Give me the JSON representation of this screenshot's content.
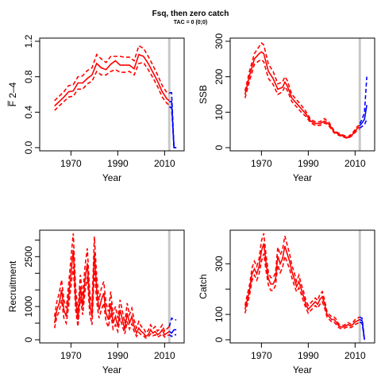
{
  "title": "Fsq, then zero catch",
  "subtitle": "TAC = 0 (0;0)",
  "colors": {
    "historic": "#ff0000",
    "projection": "#0000ff",
    "vline": "#c8c8c8"
  },
  "chart_data": [
    {
      "type": "line",
      "panel": "top-left",
      "ylabel": "F̅ 2–4",
      "xlabel": "Year",
      "xlim": [
        1958,
        2017
      ],
      "ylim": [
        0,
        1.2
      ],
      "x_ticks": [
        1970,
        1990,
        2010
      ],
      "y_ticks": [
        "0.0",
        "0.4",
        "0.8",
        "1.2"
      ],
      "vline_x": 2012,
      "historic": {
        "x": [
          1963,
          1965,
          1967,
          1969,
          1971,
          1973,
          1975,
          1977,
          1979,
          1981,
          1983,
          1985,
          1987,
          1989,
          1991,
          1993,
          1995,
          1997,
          1999,
          2001,
          2003,
          2005,
          2007,
          2009,
          2011,
          2012
        ],
        "median": [
          0.47,
          0.52,
          0.57,
          0.63,
          0.64,
          0.73,
          0.73,
          0.78,
          0.82,
          0.95,
          0.9,
          0.88,
          0.94,
          0.98,
          0.93,
          0.93,
          0.93,
          0.89,
          1.05,
          1.03,
          0.95,
          0.85,
          0.75,
          0.63,
          0.55,
          0.53
        ],
        "lower": [
          0.42,
          0.47,
          0.52,
          0.57,
          0.58,
          0.66,
          0.66,
          0.72,
          0.75,
          0.86,
          0.82,
          0.82,
          0.86,
          0.88,
          0.85,
          0.85,
          0.86,
          0.82,
          0.95,
          0.96,
          0.88,
          0.79,
          0.69,
          0.57,
          0.5,
          0.48
        ],
        "upper": [
          0.53,
          0.58,
          0.63,
          0.7,
          0.71,
          0.8,
          0.81,
          0.87,
          0.9,
          1.05,
          1.0,
          0.96,
          1.03,
          1.03,
          1.03,
          1.02,
          1.02,
          0.98,
          1.15,
          1.12,
          1.03,
          0.93,
          0.82,
          0.7,
          0.62,
          0.61
        ]
      },
      "projection": {
        "x": [
          2012,
          2013,
          2014,
          2015
        ],
        "median": [
          0.52,
          0.52,
          0.0,
          0.0
        ],
        "lower": [
          0.46,
          0.45,
          0.0,
          0.0
        ],
        "upper": [
          0.62,
          0.62,
          0.0,
          0.0
        ]
      }
    },
    {
      "type": "line",
      "panel": "top-right",
      "ylabel": "SSB",
      "xlabel": "Year",
      "xlim": [
        1958,
        2017
      ],
      "ylim": [
        0,
        300
      ],
      "x_ticks": [
        1970,
        1990,
        2010
      ],
      "y_ticks": [
        "0",
        "100",
        "200",
        "300"
      ],
      "vline_x": 2012,
      "historic": {
        "x": [
          1963,
          1965,
          1967,
          1969,
          1970,
          1971,
          1973,
          1975,
          1977,
          1979,
          1980,
          1981,
          1983,
          1985,
          1987,
          1989,
          1991,
          1993,
          1995,
          1997,
          1999,
          2001,
          2003,
          2005,
          2007,
          2009,
          2011,
          2012
        ],
        "median": [
          150,
          205,
          250,
          265,
          270,
          265,
          215,
          195,
          165,
          170,
          185,
          175,
          140,
          125,
          110,
          95,
          75,
          68,
          68,
          75,
          65,
          45,
          38,
          32,
          28,
          38,
          55,
          58
        ],
        "lower": [
          140,
          190,
          235,
          245,
          248,
          242,
          195,
          178,
          150,
          158,
          172,
          162,
          130,
          115,
          100,
          88,
          70,
          63,
          63,
          70,
          60,
          42,
          35,
          30,
          26,
          35,
          50,
          53
        ],
        "upper": [
          160,
          218,
          265,
          285,
          295,
          290,
          235,
          215,
          180,
          185,
          200,
          190,
          150,
          135,
          120,
          102,
          80,
          73,
          73,
          82,
          70,
          48,
          41,
          35,
          31,
          42,
          60,
          63
        ]
      },
      "projection": {
        "x": [
          2012,
          2013,
          2014,
          2015
        ],
        "median": [
          62,
          70,
          80,
          120
        ],
        "lower": [
          55,
          60,
          65,
          80
        ],
        "upper": [
          68,
          80,
          100,
          200
        ]
      }
    },
    {
      "type": "line",
      "panel": "bottom-left",
      "ylabel": "Recruitment",
      "xlabel": "Year",
      "xlim": [
        1958,
        2017
      ],
      "ylim": [
        0,
        3200
      ],
      "x_ticks": [
        1970,
        1990,
        2010
      ],
      "y_ticks": [
        "0",
        "1000",
        "2500"
      ],
      "y_minor_ticks": [
        500,
        1500,
        2000,
        3000
      ],
      "vline_x": 2012,
      "historic": {
        "x": [
          1963,
          1964,
          1965,
          1966,
          1967,
          1968,
          1969,
          1970,
          1971,
          1972,
          1973,
          1974,
          1975,
          1976,
          1977,
          1978,
          1979,
          1980,
          1981,
          1982,
          1983,
          1984,
          1985,
          1986,
          1987,
          1988,
          1989,
          1990,
          1991,
          1992,
          1993,
          1994,
          1995,
          1996,
          1997,
          1998,
          1999,
          2000,
          2001,
          2002,
          2003,
          2004,
          2005,
          2006,
          2007,
          2008,
          2009,
          2010,
          2011,
          2012
        ],
        "median": [
          500,
          900,
          1100,
          1500,
          900,
          700,
          1300,
          2000,
          2700,
          1200,
          600,
          1600,
          1000,
          1800,
          2300,
          1100,
          700,
          2600,
          1500,
          900,
          1200,
          1400,
          800,
          600,
          1100,
          500,
          700,
          400,
          900,
          600,
          300,
          800,
          500,
          700,
          400,
          200,
          350,
          250,
          200,
          100,
          150,
          300,
          200,
          250,
          150,
          200,
          300,
          150,
          200,
          250
        ],
        "lower": [
          350,
          700,
          850,
          1200,
          650,
          500,
          1000,
          1600,
          2200,
          900,
          400,
          1300,
          750,
          1450,
          1900,
          800,
          450,
          2100,
          1150,
          650,
          900,
          1100,
          550,
          380,
          800,
          320,
          450,
          250,
          650,
          400,
          180,
          550,
          320,
          480,
          250,
          100,
          220,
          150,
          120,
          50,
          80,
          180,
          120,
          150,
          80,
          120,
          180,
          80,
          120,
          150
        ],
        "upper": [
          700,
          1150,
          1400,
          1800,
          1200,
          950,
          1650,
          2450,
          3200,
          1550,
          850,
          1950,
          1300,
          2200,
          2750,
          1450,
          1000,
          3100,
          1900,
          1200,
          1550,
          1750,
          1100,
          850,
          1450,
          750,
          1000,
          650,
          1200,
          850,
          500,
          1100,
          750,
          950,
          600,
          350,
          550,
          400,
          350,
          200,
          280,
          450,
          330,
          400,
          260,
          330,
          450,
          260,
          330,
          400
        ]
      },
      "projection": {
        "x": [
          2012,
          2013,
          2014,
          2015
        ],
        "median": [
          250,
          200,
          300,
          300
        ],
        "lower": [
          150,
          100,
          150,
          150
        ],
        "upper": [
          400,
          650,
          600,
          600
        ]
      }
    },
    {
      "type": "line",
      "panel": "bottom-right",
      "ylabel": "Catch",
      "xlabel": "Year",
      "xlim": [
        1958,
        2017
      ],
      "ylim": [
        0,
        420
      ],
      "x_ticks": [
        1970,
        1990,
        2010
      ],
      "y_ticks": [
        "0",
        "100",
        "300"
      ],
      "y_minor_ticks": [
        200
      ],
      "vline_x": 2012,
      "historic": {
        "x": [
          1963,
          1964,
          1965,
          1966,
          1967,
          1968,
          1969,
          1970,
          1971,
          1972,
          1973,
          1974,
          1975,
          1976,
          1977,
          1978,
          1979,
          1980,
          1981,
          1982,
          1983,
          1984,
          1985,
          1986,
          1987,
          1988,
          1989,
          1990,
          1991,
          1992,
          1993,
          1994,
          1995,
          1996,
          1997,
          1998,
          1999,
          2000,
          2001,
          2002,
          2003,
          2004,
          2005,
          2006,
          2007,
          2008,
          2009,
          2010,
          2011,
          2012
        ],
        "median": [
          120,
          160,
          200,
          260,
          280,
          260,
          290,
          350,
          380,
          300,
          240,
          220,
          220,
          240,
          330,
          300,
          320,
          370,
          340,
          310,
          270,
          240,
          210,
          230,
          200,
          170,
          140,
          120,
          130,
          140,
          150,
          140,
          160,
          170,
          140,
          100,
          90,
          80,
          80,
          70,
          55,
          50,
          50,
          55,
          60,
          55,
          60,
          70,
          75,
          80
        ],
        "lower": [
          105,
          140,
          180,
          235,
          255,
          235,
          260,
          310,
          340,
          270,
          215,
          195,
          195,
          215,
          295,
          265,
          285,
          330,
          305,
          280,
          245,
          215,
          190,
          205,
          180,
          150,
          125,
          105,
          115,
          125,
          135,
          125,
          140,
          150,
          125,
          90,
          80,
          70,
          70,
          60,
          48,
          44,
          44,
          48,
          52,
          48,
          52,
          60,
          65,
          70
        ],
        "upper": [
          135,
          180,
          220,
          285,
          310,
          290,
          320,
          390,
          420,
          330,
          265,
          245,
          245,
          265,
          365,
          335,
          355,
          410,
          375,
          340,
          295,
          265,
          230,
          255,
          220,
          190,
          155,
          135,
          145,
          155,
          165,
          155,
          180,
          190,
          155,
          110,
          100,
          90,
          90,
          80,
          62,
          56,
          56,
          62,
          68,
          62,
          68,
          80,
          85,
          90
        ]
      },
      "projection": {
        "x": [
          2012,
          2013,
          2014
        ],
        "median": [
          80,
          75,
          0
        ],
        "lower": [
          70,
          65,
          0
        ],
        "upper": [
          90,
          85,
          0
        ]
      }
    }
  ]
}
